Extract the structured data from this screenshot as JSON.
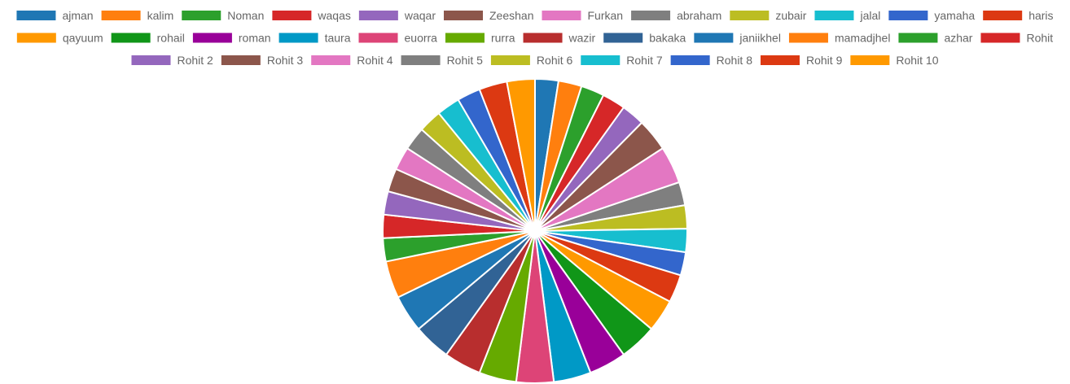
{
  "chart_data": {
    "type": "pie",
    "legend_position": "top",
    "series": [
      {
        "name": "ajman",
        "value": 5,
        "color": "#1f77b4"
      },
      {
        "name": "kalim",
        "value": 5,
        "color": "#ff7f0e"
      },
      {
        "name": "Noman",
        "value": 5,
        "color": "#2ca02c"
      },
      {
        "name": "waqas",
        "value": 5,
        "color": "#d62728"
      },
      {
        "name": "waqar",
        "value": 5,
        "color": "#9467bd"
      },
      {
        "name": "Zeeshan",
        "value": 7,
        "color": "#8c564b"
      },
      {
        "name": "Furkan",
        "value": 8,
        "color": "#e377c2"
      },
      {
        "name": "abraham",
        "value": 5,
        "color": "#7f7f7f"
      },
      {
        "name": "zubair",
        "value": 5,
        "color": "#bcbd22"
      },
      {
        "name": "jalal",
        "value": 5,
        "color": "#17becf"
      },
      {
        "name": "yamaha",
        "value": 5,
        "color": "#3366cc"
      },
      {
        "name": "haris",
        "value": 6,
        "color": "#dc3912"
      },
      {
        "name": "qayuum",
        "value": 7,
        "color": "#ff9900"
      },
      {
        "name": "rohail",
        "value": 8,
        "color": "#109618"
      },
      {
        "name": "roman",
        "value": 8,
        "color": "#990099"
      },
      {
        "name": "taura",
        "value": 8,
        "color": "#0099c6"
      },
      {
        "name": "euorra",
        "value": 8,
        "color": "#dd4477"
      },
      {
        "name": "rurra",
        "value": 8,
        "color": "#66aa00"
      },
      {
        "name": "wazir",
        "value": 8,
        "color": "#b82e2e"
      },
      {
        "name": "bakaka",
        "value": 8,
        "color": "#316395"
      },
      {
        "name": "janiikhel",
        "value": 8,
        "color": "#1f77b4"
      },
      {
        "name": "mamadjhel",
        "value": 8,
        "color": "#ff7f0e"
      },
      {
        "name": "azhar",
        "value": 5,
        "color": "#2ca02c"
      },
      {
        "name": "Rohit",
        "value": 5,
        "color": "#d62728"
      },
      {
        "name": "Rohit 2",
        "value": 5,
        "color": "#9467bd"
      },
      {
        "name": "Rohit 3",
        "value": 5,
        "color": "#8c564b"
      },
      {
        "name": "Rohit 4",
        "value": 5,
        "color": "#e377c2"
      },
      {
        "name": "Rohit 5",
        "value": 5,
        "color": "#7f7f7f"
      },
      {
        "name": "Rohit 6",
        "value": 5,
        "color": "#bcbd22"
      },
      {
        "name": "Rohit 7",
        "value": 5,
        "color": "#17becf"
      },
      {
        "name": "Rohit 8",
        "value": 5,
        "color": "#3366cc"
      },
      {
        "name": "Rohit 9",
        "value": 6,
        "color": "#dc3912"
      },
      {
        "name": "Rohit 10",
        "value": 6,
        "color": "#ff9900"
      }
    ]
  }
}
